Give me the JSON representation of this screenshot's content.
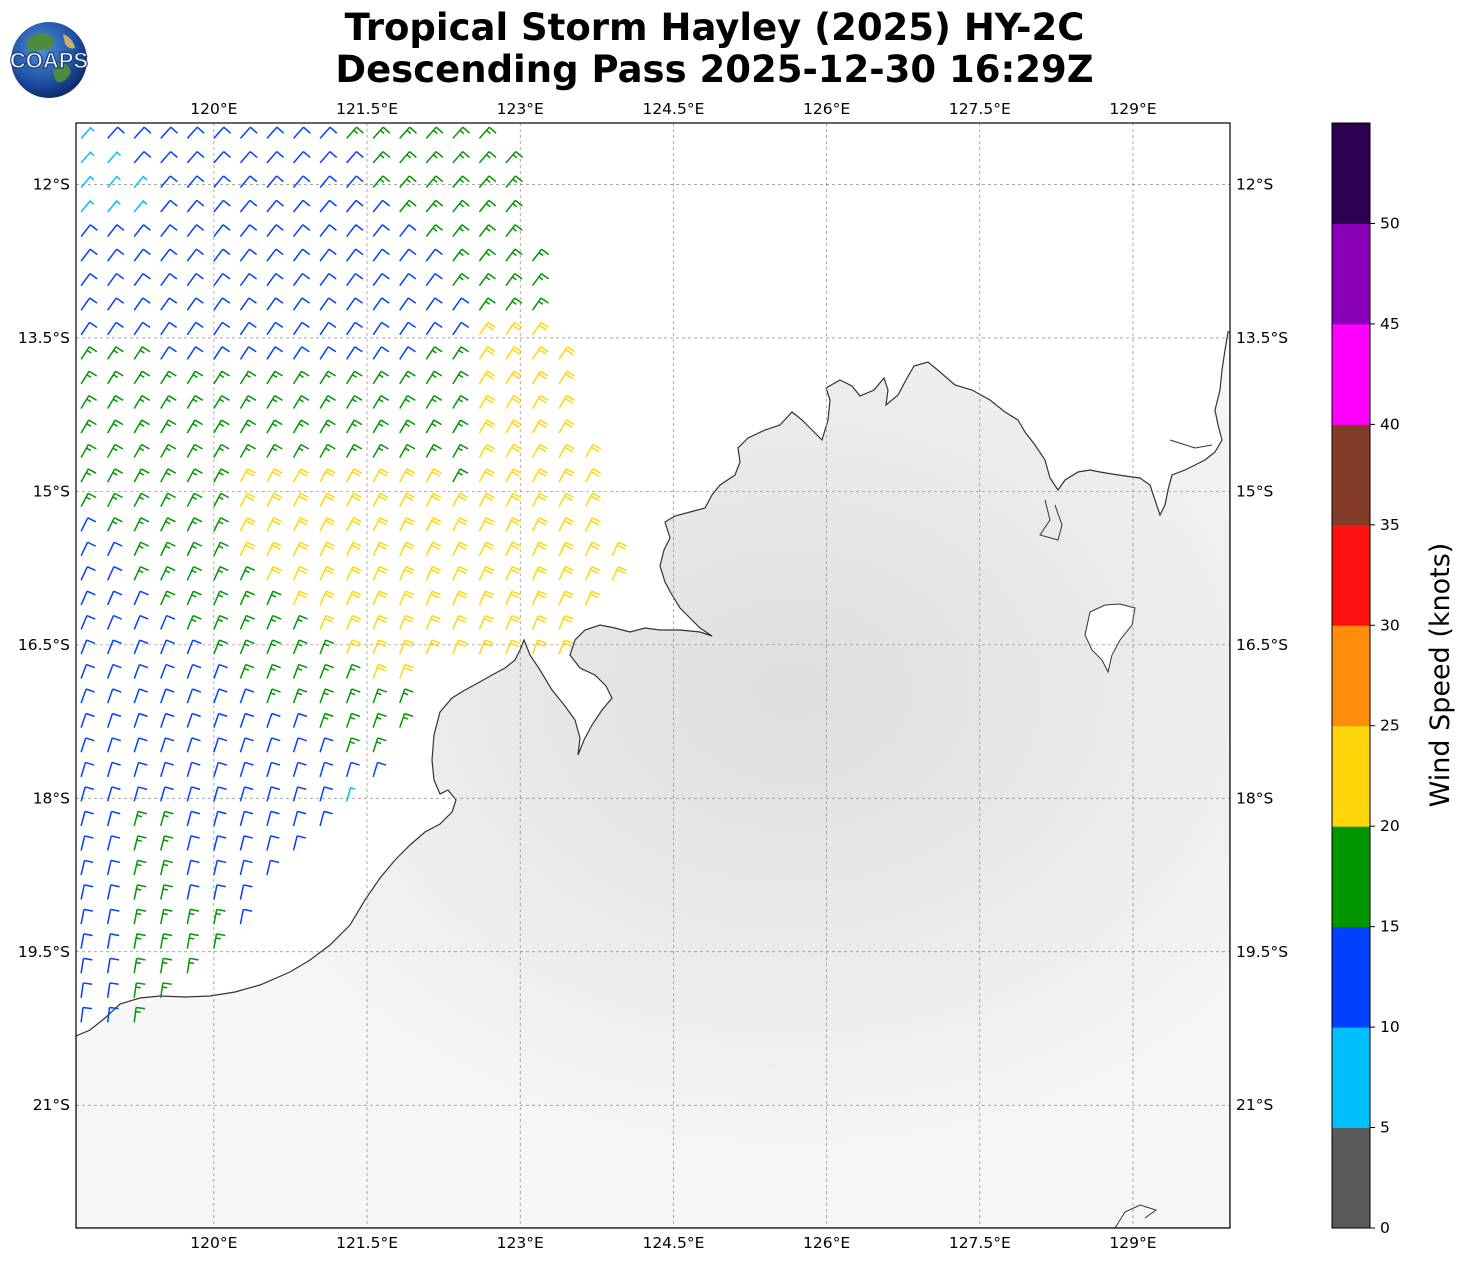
{
  "title_line1": "Tropical Storm Hayley (2025) HY-2C",
  "title_line2": "Descending Pass 2025-12-30 16:29Z",
  "logo_text": "COAPS",
  "map": {
    "lon_range": [
      118.65,
      129.95
    ],
    "lat_range": [
      -22.2,
      -11.4
    ],
    "lon_ticks": [
      {
        "value": 120.0,
        "label": "120°E"
      },
      {
        "value": 121.5,
        "label": "121.5°E"
      },
      {
        "value": 123.0,
        "label": "123°E"
      },
      {
        "value": 124.5,
        "label": "124.5°E"
      },
      {
        "value": 126.0,
        "label": "126°E"
      },
      {
        "value": 127.5,
        "label": "127.5°E"
      },
      {
        "value": 129.0,
        "label": "129°E"
      }
    ],
    "lat_ticks": [
      {
        "value": -12.0,
        "label": "12°S"
      },
      {
        "value": -13.5,
        "label": "13.5°S"
      },
      {
        "value": -15.0,
        "label": "15°S"
      },
      {
        "value": -16.5,
        "label": "16.5°S"
      },
      {
        "value": -18.0,
        "label": "18°S"
      },
      {
        "value": -19.5,
        "label": "19.5°S"
      },
      {
        "value": -21.0,
        "label": "21°S"
      }
    ],
    "gridlines": true,
    "land_color": "#f0f0f0",
    "coast_color": "#333333"
  },
  "colorbar": {
    "title": "Wind Speed (knots)",
    "range": [
      0,
      55
    ],
    "bins": [
      {
        "from": 0,
        "to": 5,
        "color": "#5a5a5a"
      },
      {
        "from": 5,
        "to": 10,
        "color": "#00bfff"
      },
      {
        "from": 10,
        "to": 15,
        "color": "#0040ff"
      },
      {
        "from": 15,
        "to": 20,
        "color": "#009600"
      },
      {
        "from": 20,
        "to": 25,
        "color": "#ffd60a"
      },
      {
        "from": 25,
        "to": 30,
        "color": "#ff8c0a"
      },
      {
        "from": 30,
        "to": 35,
        "color": "#ff1010"
      },
      {
        "from": 35,
        "to": 40,
        "color": "#823c28"
      },
      {
        "from": 40,
        "to": 45,
        "color": "#ff00ff"
      },
      {
        "from": 45,
        "to": 50,
        "color": "#8a00b8"
      },
      {
        "from": 50,
        "to": 55,
        "color": "#2d0050"
      }
    ],
    "ticks": [
      {
        "value": 0,
        "label": "0"
      },
      {
        "value": 5,
        "label": "5"
      },
      {
        "value": 10,
        "label": "10"
      },
      {
        "value": 15,
        "label": "15"
      },
      {
        "value": 20,
        "label": "20"
      },
      {
        "value": 25,
        "label": "25"
      },
      {
        "value": 30,
        "label": "30"
      },
      {
        "value": 35,
        "label": "35"
      },
      {
        "value": 40,
        "label": "40"
      },
      {
        "value": 45,
        "label": "45"
      },
      {
        "value": 50,
        "label": "50"
      }
    ]
  },
  "wind_barbs": {
    "direction_note": "winds mostly from the west-southwest, wrapping anticlockwise",
    "swath": "descending pass covering the north-west quadrant offshore"
  }
}
